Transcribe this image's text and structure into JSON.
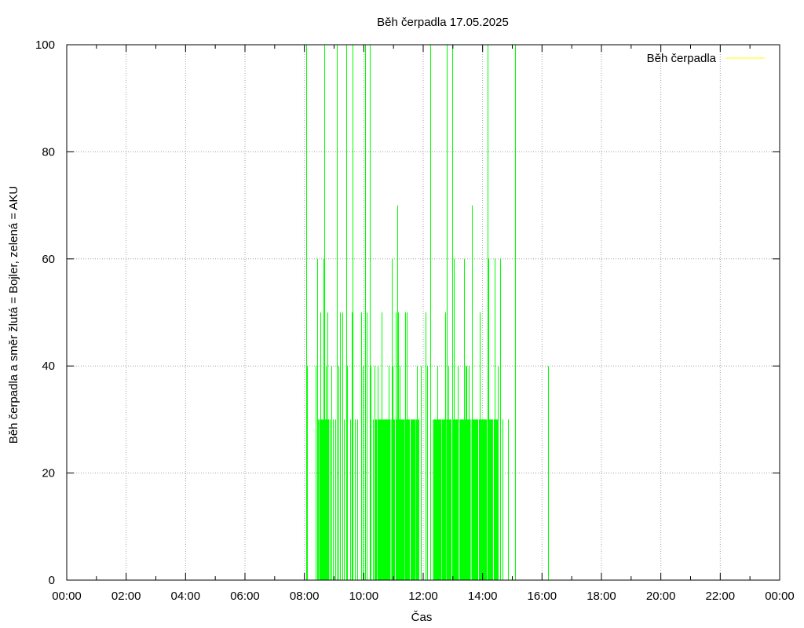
{
  "chart_data": {
    "type": "bar",
    "title": "Běh čerpadla 17.05.2025",
    "xlabel": "Čas",
    "ylabel": "Běh čerpadla a směr žlutá = Bojler, zelená = AKU",
    "xlim": [
      0,
      24
    ],
    "ylim": [
      0,
      100
    ],
    "x_tick_labels": [
      "00:00",
      "02:00",
      "04:00",
      "06:00",
      "08:00",
      "10:00",
      "12:00",
      "14:00",
      "16:00",
      "18:00",
      "20:00",
      "22:00",
      "00:00"
    ],
    "y_tick_labels": [
      "0",
      "20",
      "40",
      "60",
      "80",
      "100"
    ],
    "grid": true,
    "legend_position": "top-right",
    "colors": {
      "boiler": "#ffff00",
      "aku": "#00ff00",
      "grid": "#a0a0a0"
    },
    "series": [
      {
        "name": "Běh čerpadla",
        "color": "#ffff00",
        "points": []
      },
      {
        "color": "#00ff00",
        "spikes": [
          [
            "08:03",
            100
          ],
          [
            "08:06",
            40
          ],
          [
            "08:22",
            40
          ],
          [
            "08:26",
            60
          ],
          [
            "08:28",
            30
          ],
          [
            "08:33",
            50
          ],
          [
            "08:39",
            60
          ],
          [
            "08:40",
            100
          ],
          [
            "08:43",
            40
          ],
          [
            "08:45",
            30
          ],
          [
            "08:47",
            50
          ],
          [
            "08:48",
            30
          ],
          [
            "08:52",
            30
          ],
          [
            "08:55",
            40
          ],
          [
            "08:58",
            30
          ],
          [
            "09:02",
            30
          ],
          [
            "09:06",
            100
          ],
          [
            "09:08",
            40
          ],
          [
            "09:12",
            50
          ],
          [
            "09:16",
            50
          ],
          [
            "09:20",
            30
          ],
          [
            "09:24",
            100
          ],
          [
            "09:26",
            40
          ],
          [
            "09:32",
            30
          ],
          [
            "09:36",
            50
          ],
          [
            "09:38",
            100
          ],
          [
            "09:42",
            30
          ],
          [
            "09:46",
            30
          ],
          [
            "09:54",
            50
          ],
          [
            "09:58",
            40
          ],
          [
            "10:02",
            100
          ],
          [
            "10:06",
            50
          ],
          [
            "10:12",
            100
          ],
          [
            "10:14",
            40
          ],
          [
            "10:18",
            30
          ],
          [
            "10:22",
            40
          ],
          [
            "10:28",
            40
          ],
          [
            "10:36",
            50
          ],
          [
            "10:44",
            30
          ],
          [
            "10:50",
            40
          ],
          [
            "10:56",
            60
          ],
          [
            "10:58",
            40
          ],
          [
            "11:04",
            50
          ],
          [
            "11:08",
            70
          ],
          [
            "11:10",
            50
          ],
          [
            "11:13",
            40
          ],
          [
            "11:20",
            30
          ],
          [
            "11:24",
            50
          ],
          [
            "11:26",
            50
          ],
          [
            "11:30",
            30
          ],
          [
            "11:36",
            30
          ],
          [
            "11:42",
            30
          ],
          [
            "11:48",
            40
          ],
          [
            "11:56",
            40
          ],
          [
            "12:04",
            50
          ],
          [
            "12:08",
            40
          ],
          [
            "12:14",
            100
          ],
          [
            "12:22",
            30
          ],
          [
            "12:28",
            40
          ],
          [
            "12:38",
            30
          ],
          [
            "12:44",
            50
          ],
          [
            "12:48",
            100
          ],
          [
            "12:50",
            40
          ],
          [
            "12:54",
            30
          ],
          [
            "12:58",
            100
          ],
          [
            "13:02",
            60
          ],
          [
            "13:06",
            30
          ],
          [
            "13:10",
            40
          ],
          [
            "13:16",
            30
          ],
          [
            "13:22",
            60
          ],
          [
            "13:26",
            40
          ],
          [
            "13:28",
            40
          ],
          [
            "13:32",
            40
          ],
          [
            "13:38",
            70
          ],
          [
            "13:42",
            30
          ],
          [
            "13:48",
            30
          ],
          [
            "13:54",
            50
          ],
          [
            "13:58",
            30
          ],
          [
            "14:02",
            30
          ],
          [
            "14:06",
            30
          ],
          [
            "14:10",
            100
          ],
          [
            "14:12",
            60
          ],
          [
            "14:18",
            30
          ],
          [
            "14:24",
            60
          ],
          [
            "14:26",
            30
          ],
          [
            "14:30",
            40
          ],
          [
            "14:36",
            60
          ],
          [
            "14:40",
            30
          ],
          [
            "14:52",
            30
          ],
          [
            "15:06",
            100
          ],
          [
            "16:12",
            40
          ]
        ],
        "dense_bands": [
          {
            "start": "08:30",
            "end": "08:50",
            "value": 30
          },
          {
            "start": "10:22",
            "end": "11:52",
            "value": 30
          },
          {
            "start": "12:20",
            "end": "14:32",
            "value": 30
          }
        ]
      }
    ]
  }
}
